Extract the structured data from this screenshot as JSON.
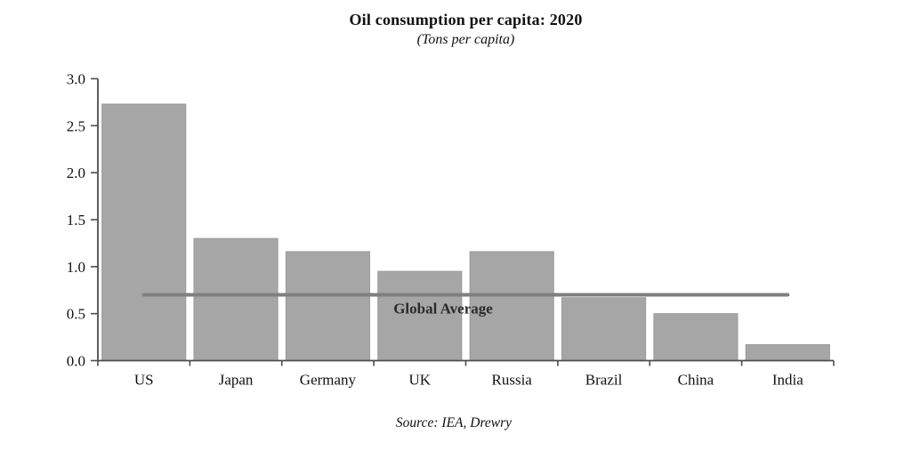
{
  "page": {
    "background": "#ffffff"
  },
  "chart_data": {
    "type": "bar",
    "title": "Oil consumption per capita: 2020",
    "subtitle": "(Tons per capita)",
    "source": "Source: IEA, Drewry",
    "categories": [
      "US",
      "Japan",
      "Germany",
      "UK",
      "Russia",
      "Brazil",
      "China",
      "India"
    ],
    "values": [
      2.73,
      1.3,
      1.16,
      0.95,
      1.16,
      0.67,
      0.5,
      0.17
    ],
    "unit": "tons per capita",
    "ylim": [
      0,
      3.0
    ],
    "ytick_step": 0.5,
    "ytick_labels": [
      "0.0",
      "0.5",
      "1.0",
      "1.5",
      "2.0",
      "2.5",
      "3.0"
    ],
    "grid": false,
    "legend": "none",
    "reference_line": {
      "label": "Global Average",
      "value": 0.7
    },
    "colors": {
      "bar": "#a6a6a6",
      "bar_border": "#9c9c9c",
      "reference_line": "#7f7f7f",
      "reference_label": "#2b2b2b",
      "axis": "#4d4d4d",
      "text": "#111111"
    }
  }
}
